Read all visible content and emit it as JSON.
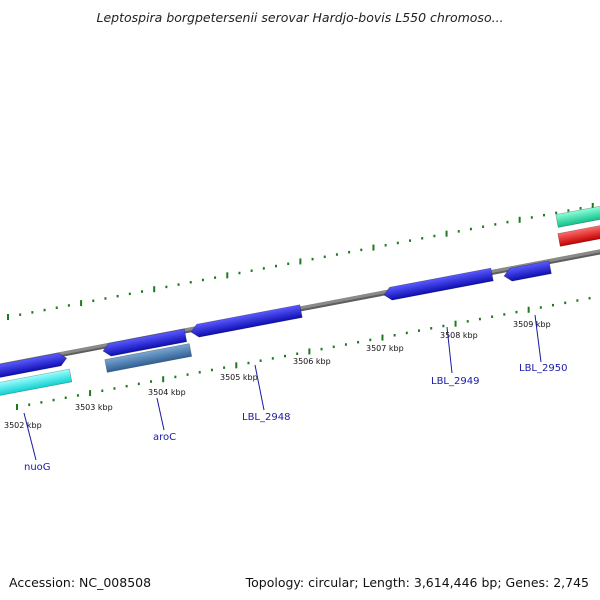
{
  "title": "Leptospira borgpetersenii serovar Hardjo-bovis L550 chromoso...",
  "footer": {
    "accession": "Accession: NC_008508",
    "summary": "Topology: circular; Length: 3,614,446 bp; Genes: 2,745"
  },
  "colors": {
    "backbone": "#8a8a8a",
    "tick": "#1e7a1e",
    "gene_blue": "#1a1ae0",
    "gene_cyan": "#22f0f0",
    "gene_steel": "#4a7fb5",
    "gene_teal": "#22e8a8",
    "gene_red": "#ee1111",
    "label_blue": "#1a1aa6"
  },
  "scale": {
    "unit": "kbp",
    "labels": [
      "3502 kbp",
      "3503 kbp",
      "3504 kbp",
      "3505 kbp",
      "3506 kbp",
      "3507 kbp",
      "3508 kbp",
      "3509 kbp"
    ]
  },
  "genes": [
    {
      "id": "nuoG",
      "label": "nuoG",
      "track": "forward",
      "color": "cyan"
    },
    {
      "id": "nuoG-rev",
      "label": "",
      "track": "reverse",
      "color": "blue"
    },
    {
      "id": "aroC",
      "label": "aroC",
      "track": "forward",
      "color": "steel"
    },
    {
      "id": "aroC-rev",
      "label": "",
      "track": "reverse",
      "color": "blue"
    },
    {
      "id": "LBL_2948",
      "label": "LBL_2948",
      "track": "reverse",
      "color": "blue"
    },
    {
      "id": "LBL_2949",
      "label": "LBL_2949",
      "track": "reverse",
      "color": "blue"
    },
    {
      "id": "LBL_2950",
      "label": "LBL_2950",
      "track": "reverse",
      "color": "blue"
    },
    {
      "id": "edge-teal",
      "label": "",
      "track": "reverse",
      "color": "teal"
    },
    {
      "id": "edge-red",
      "label": "",
      "track": "forward",
      "color": "red"
    }
  ]
}
